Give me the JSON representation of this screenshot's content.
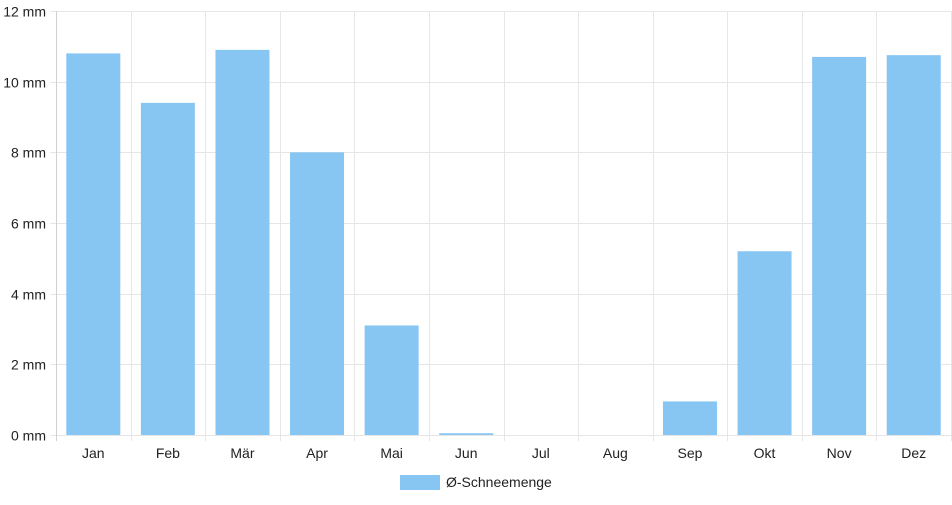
{
  "chart_data": {
    "type": "bar",
    "categories": [
      "Jan",
      "Feb",
      "Mär",
      "Apr",
      "Mai",
      "Jun",
      "Jul",
      "Aug",
      "Sep",
      "Okt",
      "Nov",
      "Dez"
    ],
    "series": [
      {
        "name": "Ø-Schneemenge",
        "values": [
          10.8,
          9.4,
          10.9,
          8.0,
          3.1,
          0.05,
          0,
          0,
          0.95,
          5.2,
          10.7,
          10.75
        ]
      }
    ],
    "y_ticks": [
      "0 mm",
      "2 mm",
      "4 mm",
      "6 mm",
      "8 mm",
      "10 mm",
      "12 mm"
    ],
    "ylim": [
      0,
      12
    ],
    "ylabel": "",
    "xlabel": "",
    "grid": true,
    "legend_position": "bottom",
    "colors": {
      "bar": "#87c5f2",
      "grid": "#e6e6e6"
    }
  }
}
